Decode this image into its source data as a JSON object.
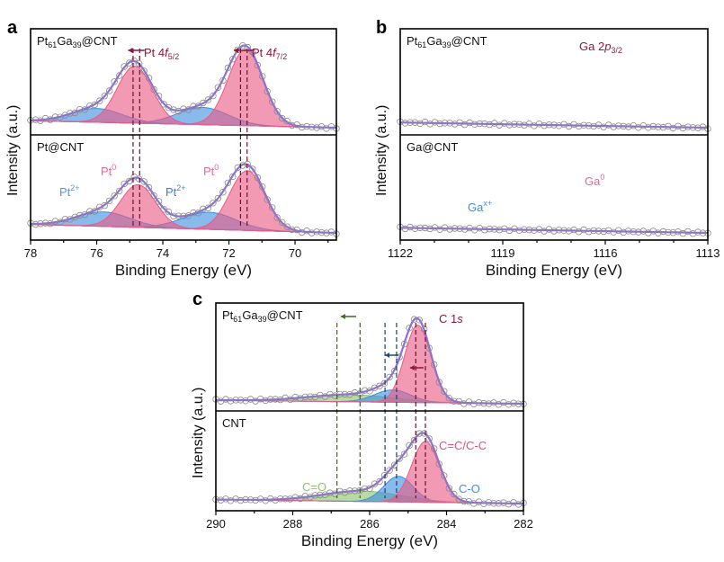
{
  "chart_data": [
    {
      "id": "a",
      "type": "area",
      "letter": "a",
      "xlabel": "Binding Energy (eV)",
      "ylabel": "Intensity (a.u.)",
      "xlim": [
        78,
        68.75
      ],
      "xticks": [
        78,
        76,
        74,
        72,
        70
      ],
      "minor_step": 1,
      "dashed": [
        {
          "x": 74.9,
          "color": "#6b1030"
        },
        {
          "x": 74.7,
          "color": "#6b1030"
        },
        {
          "x": 71.65,
          "color": "#6b1030"
        },
        {
          "x": 71.45,
          "color": "#6b1030"
        }
      ],
      "arrows": [
        {
          "from": 74.55,
          "to": 75.05,
          "color": "#8b1a3a"
        },
        {
          "from": 71.25,
          "to": 71.85,
          "color": "#8b1a3a"
        }
      ],
      "subplots": [
        {
          "sample": {
            "p1": "Pt",
            "s1": "61",
            "p2": "Ga",
            "s2": "39",
            "p3": "@CNT"
          },
          "baseline": [
            0.08,
            0.0
          ],
          "components": [
            {
              "name": "Pt2+ 4f5/2",
              "center": 76.0,
              "height": 0.16,
              "fwhm": 1.8,
              "color": "#3f8fe0"
            },
            {
              "name": "Pt2+ 4f7/2",
              "center": 72.8,
              "height": 0.2,
              "fwhm": 1.8,
              "color": "#3f8fe0"
            },
            {
              "name": "Pt0 4f5/2",
              "center": 74.85,
              "height": 0.66,
              "fwhm": 1.25,
              "color": "#ea5a86"
            },
            {
              "name": "Pt0 4f7/2",
              "center": 71.5,
              "height": 0.88,
              "fwhm": 1.25,
              "color": "#ea5a86"
            }
          ]
        },
        {
          "sample": {
            "p1": "Pt@CNT",
            "s1": "",
            "p2": "",
            "s2": "",
            "p3": ""
          },
          "baseline": [
            0.1,
            0.0
          ],
          "components": [
            {
              "name": "Pt2+ 4f5/2",
              "center": 75.8,
              "height": 0.17,
              "fwhm": 1.9,
              "color": "#3f8fe0"
            },
            {
              "name": "Pt2+ 4f7/2",
              "center": 72.6,
              "height": 0.2,
              "fwhm": 1.9,
              "color": "#3f8fe0"
            },
            {
              "name": "Pt0 4f5/2",
              "center": 74.75,
              "height": 0.5,
              "fwhm": 1.25,
              "color": "#ea5a86"
            },
            {
              "name": "Pt0 4f7/2",
              "center": 71.45,
              "height": 0.7,
              "fwhm": 1.25,
              "color": "#ea5a86"
            }
          ]
        }
      ],
      "annotations": {
        "pt4f52": {
          "pre": "Pt 4",
          "it": "f",
          "sub": "5/2"
        },
        "pt4f72": {
          "pre": "Pt 4",
          "it": "f",
          "sub": "7/2"
        },
        "pt0_1": {
          "pre": "Pt",
          "sup": "0"
        },
        "pt0_2": {
          "pre": "Pt",
          "sup": "0"
        },
        "pt2_1": {
          "pre": "Pt",
          "sup": "2+"
        },
        "pt2_2": {
          "pre": "Pt",
          "sup": "2+"
        }
      }
    },
    {
      "id": "b",
      "type": "area",
      "letter": "b",
      "xlabel": "Binding Energy (eV)",
      "ylabel": "Intensity (a.u.)",
      "xlim": [
        1122,
        1113
      ],
      "xticks": [
        1122,
        1119,
        1116,
        1113
      ],
      "minor_step": 1,
      "dashed": [
        {
          "x": 117.4,
          "color": "#6b1030"
        },
        {
          "x": 116.9,
          "color": "#6b1030"
        }
      ],
      "arrows": [
        {
          "from": 117.5,
          "to": 116.8,
          "color": "#8b1a3a"
        }
      ],
      "subplots": [
        {
          "sample": {
            "p1": "Pt",
            "s1": "61",
            "p2": "Ga",
            "s2": "39",
            "p3": "@CNT"
          },
          "baseline": [
            0.06,
            0.0
          ],
          "components": [
            {
              "name": "Gax+",
              "center": 118.6,
              "height": 0.14,
              "fwhm": 2.0,
              "color": "#3f8fe0"
            },
            {
              "name": "Ga0",
              "center": 116.9,
              "height": 0.78,
              "fwhm": 2.3,
              "color": "#ea5a86"
            }
          ]
        },
        {
          "sample": {
            "p1": "Ga@CNT",
            "s1": "",
            "p2": "",
            "s2": "",
            "p3": ""
          },
          "baseline": [
            0.06,
            0.0
          ],
          "components": [
            {
              "name": "Gax+",
              "center": 118.7,
              "height": 0.16,
              "fwhm": 2.0,
              "color": "#3f8fe0"
            },
            {
              "name": "Ga0",
              "center": 117.3,
              "height": 0.6,
              "fwhm": 2.3,
              "color": "#ea5a86"
            }
          ]
        }
      ],
      "annotations": {
        "ga2p": {
          "pre": "Ga 2",
          "it": "p",
          "sub": "3/2"
        },
        "ga0": {
          "pre": "Ga",
          "sup": "0"
        },
        "gax": {
          "pre": "Ga",
          "sup": "x+"
        }
      }
    },
    {
      "id": "c",
      "type": "area",
      "letter": "c",
      "xlabel": "Binding Energy (eV)",
      "ylabel": "Intensity (a.u.)",
      "xlim": [
        290,
        282
      ],
      "xticks": [
        290,
        288,
        286,
        284,
        282
      ],
      "minor_step": 1,
      "dashed": [
        {
          "x": 286.85,
          "color": "#4a5a30"
        },
        {
          "x": 286.25,
          "color": "#4a5a30"
        },
        {
          "x": 285.6,
          "color": "#1d3d6b"
        },
        {
          "x": 285.3,
          "color": "#1d3d6b"
        },
        {
          "x": 284.8,
          "color": "#6b1030"
        },
        {
          "x": 284.55,
          "color": "#6b1030"
        }
      ],
      "arrows": [
        {
          "from": 286.35,
          "to": 286.75,
          "color": "#3d6b25"
        },
        {
          "from": 285.25,
          "to": 285.6,
          "color": "#1d4d6b"
        },
        {
          "from": 284.6,
          "to": 284.95,
          "color": "#8b1a3a"
        }
      ],
      "subplots": [
        {
          "sample": {
            "p1": "Pt",
            "s1": "61",
            "p2": "Ga",
            "s2": "39",
            "p3": "@CNT"
          },
          "baseline": [
            0.04,
            0.0
          ],
          "components": [
            {
              "name": "C=O",
              "center": 286.5,
              "height": 0.08,
              "fwhm": 2.6,
              "color": "#8cc56a"
            },
            {
              "name": "C-O",
              "center": 285.4,
              "height": 0.14,
              "fwhm": 1.1,
              "color": "#3f8fe0"
            },
            {
              "name": "C=C/C-C",
              "center": 284.75,
              "height": 0.88,
              "fwhm": 0.8,
              "color": "#ea5a86"
            }
          ]
        },
        {
          "sample": {
            "p1": "CNT",
            "s1": "",
            "p2": "",
            "s2": "",
            "p3": ""
          },
          "baseline": [
            0.05,
            0.0
          ],
          "components": [
            {
              "name": "C=O",
              "center": 286.2,
              "height": 0.13,
              "fwhm": 2.4,
              "color": "#8cc56a"
            },
            {
              "name": "C-O",
              "center": 285.25,
              "height": 0.32,
              "fwhm": 0.9,
              "color": "#3f8fe0"
            },
            {
              "name": "C=C/C-C",
              "center": 284.55,
              "height": 0.76,
              "fwhm": 0.85,
              "color": "#ea5a86"
            }
          ]
        }
      ],
      "annotations": {
        "c1s": {
          "pre": "C 1",
          "it": "s"
        },
        "cco": {
          "pre": "C=O"
        },
        "co": {
          "pre": "C-O"
        },
        "ccc": {
          "pre": "C=C/C-C"
        }
      }
    }
  ]
}
